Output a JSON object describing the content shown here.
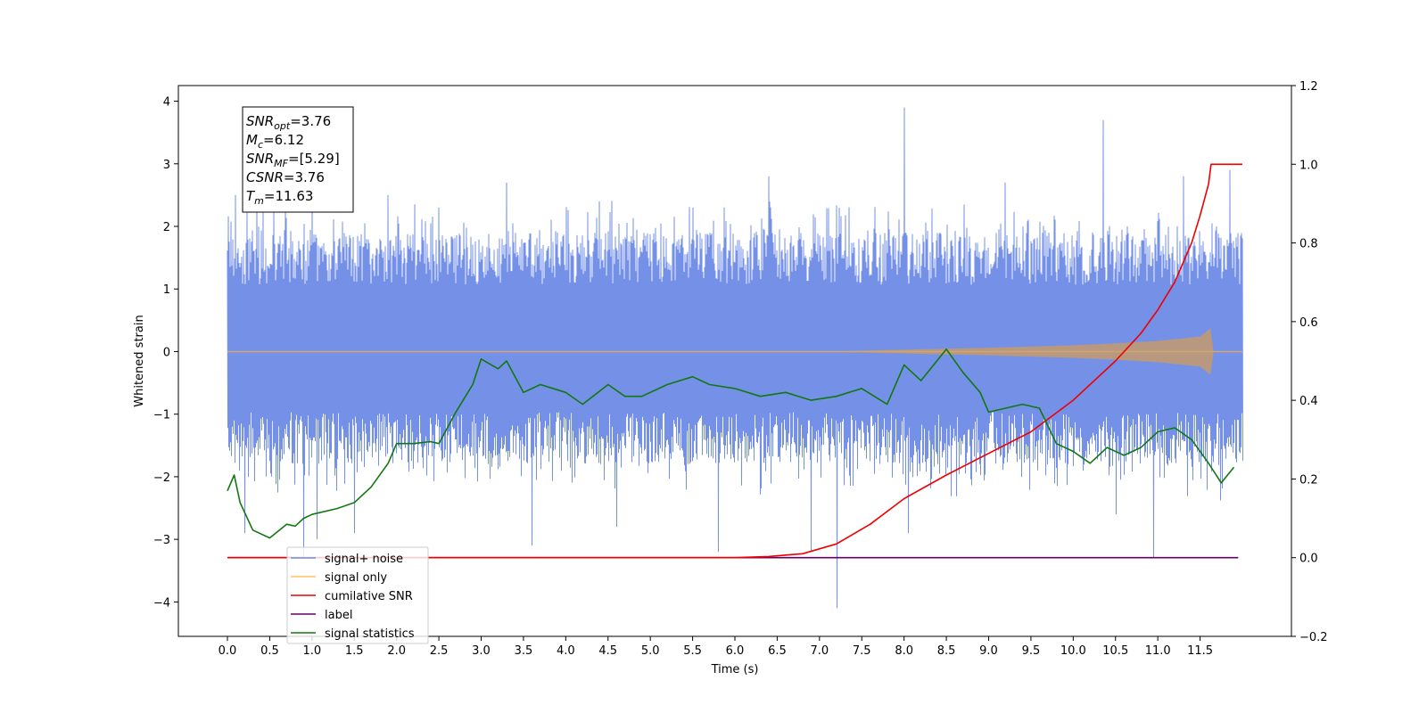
{
  "chart_data": {
    "type": "line",
    "xlabel": "Time (s)",
    "ylabel": "Whitened strain",
    "xlim": [
      -0.58,
      12.58
    ],
    "ylim": [
      -4.55,
      4.25
    ],
    "y2lim": [
      -0.2,
      1.2
    ],
    "x_ticks": [
      0.0,
      0.5,
      1.0,
      1.5,
      2.0,
      2.5,
      3.0,
      3.5,
      4.0,
      4.5,
      5.0,
      5.5,
      6.0,
      6.5,
      7.0,
      7.5,
      8.0,
      8.5,
      9.0,
      9.5,
      10.0,
      10.5,
      11.0,
      11.5
    ],
    "x_tick_labels": [
      "0.0",
      "0.5",
      "1.0",
      "1.5",
      "2.0",
      "2.5",
      "3.0",
      "3.5",
      "4.0",
      "4.5",
      "5.0",
      "5.5",
      "6.0",
      "6.5",
      "7.0",
      "7.5",
      "8.0",
      "8.5",
      "9.0",
      "9.5",
      "10.0",
      "10.5",
      "11.0",
      "11.5"
    ],
    "y_ticks": [
      -4,
      -3,
      -2,
      -1,
      0,
      1,
      2,
      3,
      4
    ],
    "y_tick_labels": [
      "−4",
      "−3",
      "−2",
      "−1",
      "0",
      "1",
      "2",
      "3",
      "4"
    ],
    "y2_ticks": [
      -0.2,
      0.0,
      0.2,
      0.4,
      0.6,
      0.8,
      1.0,
      1.2
    ],
    "y2_tick_labels": [
      "−0.2",
      "0.0",
      "0.2",
      "0.4",
      "0.6",
      "0.8",
      "1.0",
      "1.2"
    ],
    "grid": false,
    "legend_position": "lower-left",
    "series": [
      {
        "name": "signal+ noise",
        "axis": "left",
        "color": "#6e8be6",
        "x_range": [
          0.0,
          12.0
        ],
        "typical_band": [
          -1.8,
          1.9
        ],
        "spikes": [
          {
            "x": 0.1,
            "y": 2.5
          },
          {
            "x": 0.2,
            "y": -2.9
          },
          {
            "x": 0.35,
            "y": 2.4
          },
          {
            "x": 0.55,
            "y": 2.3
          },
          {
            "x": 0.9,
            "y": -3.3
          },
          {
            "x": 1.0,
            "y": 2.6
          },
          {
            "x": 1.05,
            "y": -3.0
          },
          {
            "x": 1.5,
            "y": -2.9
          },
          {
            "x": 1.9,
            "y": 2.5
          },
          {
            "x": 2.5,
            "y": 2.3
          },
          {
            "x": 3.3,
            "y": 2.7
          },
          {
            "x": 3.6,
            "y": -3.1
          },
          {
            "x": 4.4,
            "y": 2.4
          },
          {
            "x": 4.6,
            "y": -2.8
          },
          {
            "x": 5.5,
            "y": 2.3
          },
          {
            "x": 5.8,
            "y": -3.2
          },
          {
            "x": 6.4,
            "y": 2.8
          },
          {
            "x": 6.9,
            "y": -3.2
          },
          {
            "x": 7.2,
            "y": -4.1
          },
          {
            "x": 8.0,
            "y": 3.9
          },
          {
            "x": 8.05,
            "y": -2.9
          },
          {
            "x": 9.2,
            "y": 2.7
          },
          {
            "x": 10.35,
            "y": 3.7
          },
          {
            "x": 10.5,
            "y": -2.6
          },
          {
            "x": 10.95,
            "y": -3.3
          },
          {
            "x": 11.3,
            "y": 2.8
          },
          {
            "x": 11.85,
            "y": 2.9
          }
        ]
      },
      {
        "name": "signal only",
        "axis": "left",
        "color": "#ffc266",
        "x_range": [
          0.0,
          12.0
        ],
        "envelope": {
          "x": [
            0.0,
            7.0,
            8.0,
            9.0,
            10.0,
            10.5,
            11.0,
            11.5,
            11.63,
            11.65,
            12.0
          ],
          "amp": [
            0.0,
            0.0,
            0.03,
            0.06,
            0.1,
            0.13,
            0.17,
            0.24,
            0.38,
            0.0,
            0.0
          ]
        }
      },
      {
        "name": "cumilative SNR",
        "axis": "right",
        "color": "#ee0000",
        "x": [
          0.0,
          6.0,
          6.4,
          6.8,
          7.2,
          7.6,
          8.0,
          8.5,
          9.0,
          9.5,
          10.0,
          10.5,
          10.8,
          11.0,
          11.2,
          11.4,
          11.5,
          11.6,
          11.63,
          12.0
        ],
        "y": [
          0.0,
          0.0,
          0.003,
          0.01,
          0.035,
          0.085,
          0.15,
          0.21,
          0.265,
          0.32,
          0.4,
          0.5,
          0.57,
          0.63,
          0.7,
          0.8,
          0.87,
          0.95,
          1.0,
          1.0
        ]
      },
      {
        "name": "label",
        "axis": "right",
        "color": "#660066",
        "x": [
          0.0,
          11.95
        ],
        "y": [
          0.0,
          0.0
        ]
      },
      {
        "name": "signal statistics",
        "axis": "right",
        "color": "#117711",
        "x": [
          0.0,
          0.08,
          0.15,
          0.3,
          0.5,
          0.7,
          0.8,
          0.9,
          1.0,
          1.3,
          1.5,
          1.7,
          1.9,
          2.0,
          2.2,
          2.4,
          2.5,
          2.7,
          2.9,
          3.0,
          3.2,
          3.3,
          3.5,
          3.7,
          4.0,
          4.2,
          4.5,
          4.7,
          4.9,
          5.2,
          5.5,
          5.7,
          6.0,
          6.3,
          6.6,
          6.9,
          7.2,
          7.5,
          7.8,
          8.0,
          8.2,
          8.35,
          8.5,
          8.7,
          8.9,
          9.0,
          9.2,
          9.4,
          9.6,
          9.8,
          10.0,
          10.2,
          10.4,
          10.6,
          10.8,
          11.0,
          11.2,
          11.4,
          11.6,
          11.75,
          11.9
        ],
        "y": [
          0.17,
          0.21,
          0.14,
          0.07,
          0.05,
          0.085,
          0.08,
          0.1,
          0.11,
          0.125,
          0.14,
          0.18,
          0.24,
          0.29,
          0.29,
          0.295,
          0.29,
          0.37,
          0.44,
          0.505,
          0.48,
          0.5,
          0.42,
          0.44,
          0.42,
          0.39,
          0.44,
          0.41,
          0.41,
          0.44,
          0.46,
          0.44,
          0.43,
          0.41,
          0.42,
          0.4,
          0.41,
          0.43,
          0.39,
          0.49,
          0.45,
          0.49,
          0.53,
          0.47,
          0.42,
          0.37,
          0.38,
          0.39,
          0.38,
          0.29,
          0.27,
          0.24,
          0.28,
          0.26,
          0.28,
          0.32,
          0.33,
          0.3,
          0.24,
          0.19,
          0.23
        ]
      }
    ],
    "annotation": {
      "lines": [
        {
          "name": "SNR",
          "sub": "opt",
          "value": "=3.76"
        },
        {
          "name": "M",
          "sub": "c",
          "value": "=6.12"
        },
        {
          "name": "SNR",
          "sub": "MF",
          "value": "=[5.29]"
        },
        {
          "name": "CSNR",
          "sub": "",
          "value": "=3.76"
        },
        {
          "name": "T",
          "sub": "m",
          "value": "=11.63"
        }
      ]
    },
    "legend": [
      "signal+ noise",
      "signal only",
      "cumilative SNR",
      "label",
      "signal statistics"
    ]
  }
}
